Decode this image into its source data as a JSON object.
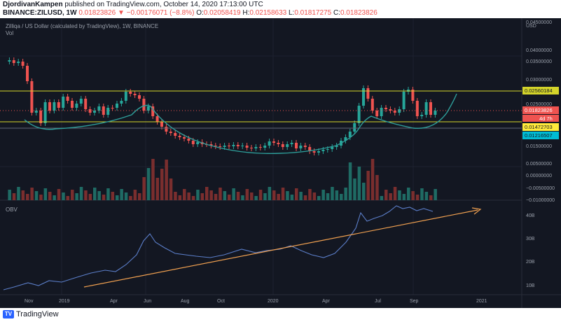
{
  "header": {
    "author": "DjordivanKampen",
    "published_text": "published on TradingView.com, October 14, 2020 17:13:00 UTC",
    "symbol": "BINANCE:ZILUSD, 1W",
    "price": "0.01823826",
    "change": "−0.00176071 (−8.8%)",
    "o_label": "O:",
    "o_value": "0.02058419",
    "h_label": "H:",
    "h_value": "0.02158633",
    "l_label": "L:",
    "l_value": "0.01817275",
    "c_label": "C:",
    "c_value": "0.01823826"
  },
  "legend": {
    "title": "Zilliqa / US Dollar (calculated by TradingView), 1W, BINANCE",
    "vol": "Vol",
    "obv": "OBV"
  },
  "price_axis": {
    "currency": "USD",
    "ticks": [
      "0.04500000",
      "0.04000000",
      "0.03500000",
      "0.03000000",
      "0.02500000",
      "0.02000000",
      "0.01500000",
      "0.01000000",
      "0.00500000",
      "0.00000000",
      "−0.00500000",
      "−0.01000000"
    ]
  },
  "obv_axis": {
    "ticks": [
      "40B",
      "30B",
      "20B",
      "10B"
    ]
  },
  "time_axis": {
    "labels": [
      "Nov",
      "2019",
      "Apr",
      "Jun",
      "Aug",
      "Oct",
      "2020",
      "Apr",
      "Jul",
      "Sep",
      "2021"
    ]
  },
  "levels": {
    "resistance": "0.02560184",
    "last_price": "0.01823826",
    "countdown": "4d 7h",
    "support": "0.01472703",
    "lower": "0.01216507"
  },
  "colors": {
    "background": "#131722",
    "up": "#26a69a",
    "down": "#ef5350",
    "level_line": "#d4d42a",
    "cup_curve": "#2e9e9a",
    "trend": "#f0a050",
    "obv_line": "#5b7ec9"
  },
  "footer": {
    "brand": "TradingView"
  }
}
